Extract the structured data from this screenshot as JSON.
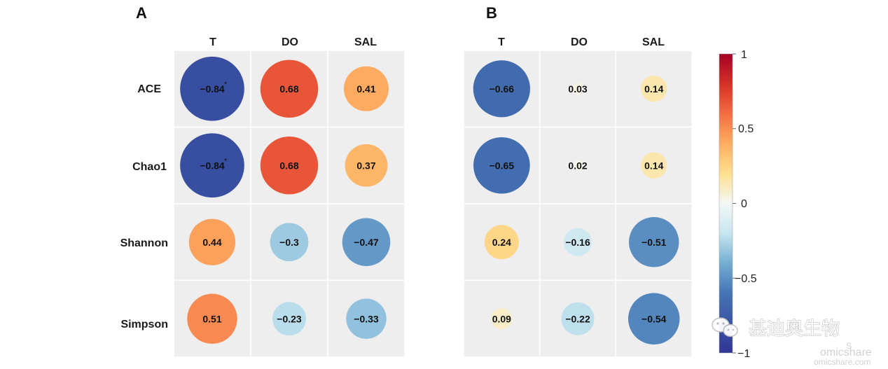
{
  "chart_data": {
    "type": "correlation-heatmap",
    "colorbar": {
      "ticks": [
        "1",
        "0.5",
        "0",
        "−0.5",
        "−1"
      ],
      "range": [
        -1,
        1
      ]
    },
    "panels": [
      {
        "panel_label": "A",
        "columns": [
          "T",
          "DO",
          "SAL"
        ],
        "rows": [
          "ACE",
          "Chao1",
          "Shannon",
          "Simpson"
        ],
        "values": [
          [
            -0.84,
            0.68,
            0.41
          ],
          [
            -0.84,
            0.68,
            0.37
          ],
          [
            0.44,
            -0.3,
            -0.47
          ],
          [
            0.51,
            -0.23,
            -0.33
          ]
        ],
        "labels": [
          [
            "−0.84",
            "0.68",
            "0.41"
          ],
          [
            "−0.84",
            "0.68",
            "0.37"
          ],
          [
            "0.44",
            "−0.3",
            "−0.47"
          ],
          [
            "0.51",
            "−0.23",
            "−0.33"
          ]
        ],
        "significance": [
          [
            "*",
            "",
            ""
          ],
          [
            "*",
            "",
            ""
          ],
          [
            "",
            "",
            ""
          ],
          [
            "",
            "",
            ""
          ]
        ]
      },
      {
        "panel_label": "B",
        "columns": [
          "T",
          "DO",
          "SAL"
        ],
        "rows": [
          "ACE",
          "Chao1",
          "Shannon",
          "Simpson"
        ],
        "values": [
          [
            -0.66,
            0.03,
            0.14
          ],
          [
            -0.65,
            0.02,
            0.14
          ],
          [
            0.24,
            -0.16,
            -0.51
          ],
          [
            0.09,
            -0.22,
            -0.54
          ]
        ],
        "labels": [
          [
            "−0.66",
            "0.03",
            "0.14"
          ],
          [
            "−0.65",
            "0.02",
            "0.14"
          ],
          [
            "0.24",
            "−0.16",
            "−0.51"
          ],
          [
            "0.09",
            "−0.22",
            "−0.54"
          ]
        ],
        "significance": [
          [
            "",
            "",
            ""
          ],
          [
            "",
            "",
            ""
          ],
          [
            "",
            "",
            ""
          ],
          [
            "",
            "",
            ""
          ]
        ]
      }
    ]
  },
  "watermark": {
    "brand": "基迪奥生物",
    "site_name": "omicshare",
    "url": "omicshare.com",
    "logo_letter": "S",
    "wechat_icon": "wechat-icon"
  },
  "colors": {
    "cell_background": "#eeeeee",
    "cell_divider": "#ffffff",
    "scale": [
      "#313695",
      "#4575b4",
      "#74add1",
      "#abd9e9",
      "#e0f3f8",
      "#fee090",
      "#fdae61",
      "#f46d43",
      "#d73027",
      "#a50026"
    ]
  }
}
